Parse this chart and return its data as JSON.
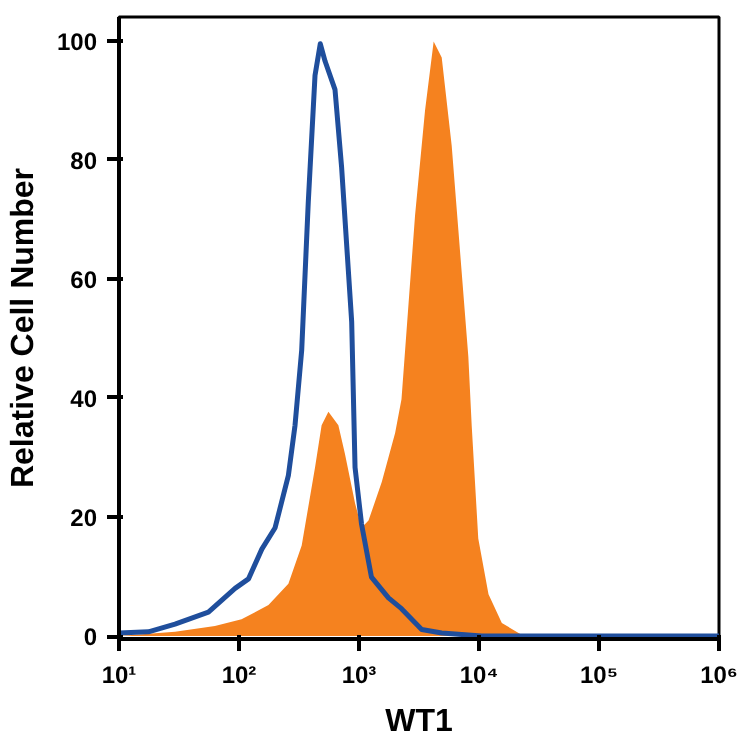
{
  "chart_data": {
    "type": "line",
    "xlabel": "WT1",
    "ylabel": "Relative Cell Number",
    "log": "x",
    "xlim": [
      10,
      1000000
    ],
    "ylim": [
      -0.5,
      104
    ],
    "xticks": [
      {
        "value": 10,
        "label": "10¹"
      },
      {
        "value": 100,
        "label": "10²"
      },
      {
        "value": 1000,
        "label": "10³"
      },
      {
        "value": 10000,
        "label": "10⁴"
      },
      {
        "value": 100000,
        "label": "10⁵"
      },
      {
        "value": 1000000,
        "label": "10⁶"
      }
    ],
    "yticks": [
      0,
      20,
      40,
      60,
      80,
      100
    ],
    "grid": false,
    "series": [
      {
        "type": "area",
        "color": "#f5821f",
        "x": [
          10,
          29.3,
          63,
          105,
          176,
          258,
          333,
          430,
          488,
          556,
          673,
          764,
          927,
          1050,
          1200,
          1550,
          2000,
          2260,
          2930,
          3550,
          4190,
          4890,
          5920,
          6730,
          8150,
          8690,
          9860,
          12000,
          15500,
          22600,
          63100,
          1000000
        ],
        "values": [
          0,
          0.7,
          1.7,
          2.8,
          5.2,
          8.8,
          15.2,
          28.3,
          35.4,
          37.7,
          35.4,
          30.6,
          22.3,
          18.2,
          19.4,
          25.9,
          34.1,
          39.8,
          70.6,
          88.3,
          99.9,
          97.2,
          82.4,
          68.2,
          46.9,
          35.4,
          16.4,
          7,
          2.2,
          0.2,
          0,
          0
        ]
      },
      {
        "color": "#1f4e9c",
        "x": [
          10,
          17.6,
          29.3,
          55.6,
          92.7,
          120,
          155,
          200,
          258,
          293,
          333,
          378,
          430,
          476,
          521,
          631,
          716,
          869,
          927,
          1050,
          1270,
          1760,
          2260,
          3330,
          4890,
          10500,
          1000000
        ],
        "values": [
          0.5,
          0.7,
          2,
          4,
          8,
          9.6,
          14.6,
          18.2,
          27,
          35.4,
          48,
          73,
          94.2,
          99.5,
          96.6,
          91.8,
          78.8,
          52.8,
          28.3,
          18.8,
          9.9,
          6.4,
          4.6,
          1.1,
          0.5,
          0,
          0
        ]
      }
    ]
  }
}
